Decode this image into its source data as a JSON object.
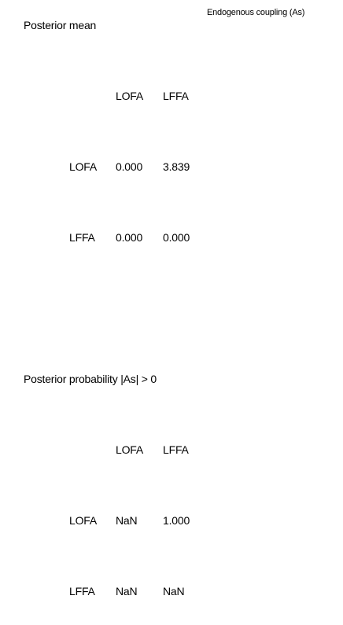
{
  "figure_title": "Endogenous coupling (As)",
  "sections": [
    {
      "title": "Posterior mean",
      "column_headers": [
        "LOFA",
        "LFFA"
      ],
      "rows": [
        {
          "label": "LOFA",
          "values": [
            "0.000",
            "3.839"
          ]
        },
        {
          "label": "LFFA",
          "values": [
            "0.000",
            "0.000"
          ]
        }
      ]
    },
    {
      "title": "Posterior probability |As| > 0",
      "column_headers": [
        "LOFA",
        "LFFA"
      ],
      "rows": [
        {
          "label": "LOFA",
          "values": [
            "NaN",
            "1.000"
          ]
        },
        {
          "label": "LFFA",
          "values": [
            "NaN",
            "NaN"
          ]
        }
      ]
    }
  ]
}
